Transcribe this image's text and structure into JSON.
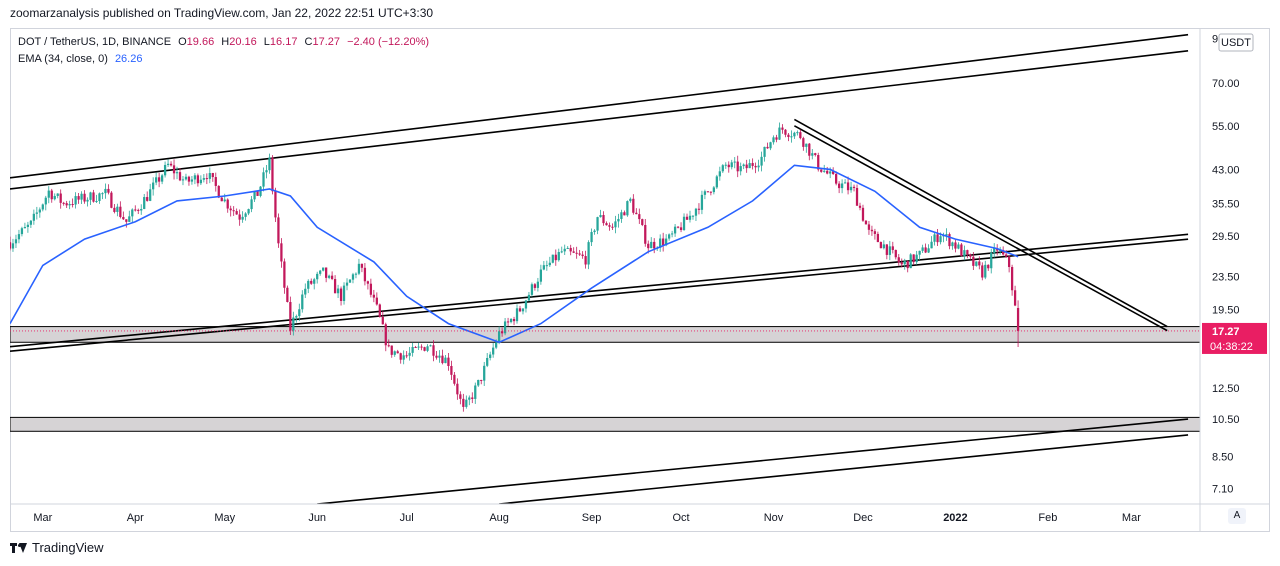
{
  "publisher_line": "zoomarzanalysis published on TradingView.com, Jan 22, 2022 22:51 UTC+3:30",
  "legend": {
    "symbol": "DOT / TetherUS, 1D, BINANCE",
    "open_label": "O",
    "open": "19.66",
    "high_label": "H",
    "high": "20.16",
    "low_label": "L",
    "low": "16.17",
    "close_label": "C",
    "close": "17.27",
    "change": "−2.40 (−12.20%)",
    "ema_label": "EMA (34, close, 0)",
    "ema_value": "26.26"
  },
  "footer_brand": "TradingView",
  "auto_button": "A",
  "colors": {
    "up": "#26a69a",
    "down": "#c2185b",
    "ema": "#2962ff",
    "trendline": "#000000",
    "zone_fill": "#d6d3d5",
    "price_tag": "#e91e63"
  },
  "chart_data": {
    "type": "candlestick",
    "currency_label": "USDT",
    "scale": "log",
    "y_tick_labels": [
      "90.00",
      "70.00",
      "55.00",
      "43.00",
      "35.50",
      "29.50",
      "23.50",
      "19.50",
      "12.50",
      "10.50",
      "8.50",
      "7.10"
    ],
    "y_tick_values": [
      90,
      70,
      55,
      43,
      35.5,
      29.5,
      23.5,
      19.5,
      12.5,
      10.5,
      8.5,
      7.1
    ],
    "x_tick_labels": [
      "Mar",
      "Apr",
      "May",
      "Jun",
      "Jul",
      "Aug",
      "Sep",
      "Oct",
      "Nov",
      "Dec",
      "2022",
      "Feb",
      "Mar"
    ],
    "x_tick_dates": [
      "2021-03-01",
      "2021-04-01",
      "2021-05-01",
      "2021-06-01",
      "2021-07-01",
      "2021-08-01",
      "2021-09-01",
      "2021-10-01",
      "2021-11-01",
      "2021-12-01",
      "2022-01-01",
      "2022-02-01",
      "2022-03-01"
    ],
    "x_range": [
      "2021-02-18",
      "2022-03-24"
    ],
    "y_range": [
      6.5,
      95
    ],
    "last_price": "17.27",
    "countdown": "04:38:22",
    "close_path": [
      {
        "date": "2021-02-18",
        "close": 28.5
      },
      {
        "date": "2021-02-25",
        "close": 31.5
      },
      {
        "date": "2021-03-03",
        "close": 38.0
      },
      {
        "date": "2021-03-08",
        "close": 35.5
      },
      {
        "date": "2021-03-15",
        "close": 36.5
      },
      {
        "date": "2021-03-22",
        "close": 37.5
      },
      {
        "date": "2021-03-29",
        "close": 32.0
      },
      {
        "date": "2021-04-05",
        "close": 37.0
      },
      {
        "date": "2021-04-12",
        "close": 44.0
      },
      {
        "date": "2021-04-18",
        "close": 40.0
      },
      {
        "date": "2021-04-25",
        "close": 42.0
      },
      {
        "date": "2021-05-01",
        "close": 36.0
      },
      {
        "date": "2021-05-06",
        "close": 33.0
      },
      {
        "date": "2021-05-12",
        "close": 37.5
      },
      {
        "date": "2021-05-16",
        "close": 45.0
      },
      {
        "date": "2021-05-19",
        "close": 28.0
      },
      {
        "date": "2021-05-23",
        "close": 17.5
      },
      {
        "date": "2021-05-28",
        "close": 22.0
      },
      {
        "date": "2021-06-03",
        "close": 24.0
      },
      {
        "date": "2021-06-09",
        "close": 21.0
      },
      {
        "date": "2021-06-15",
        "close": 25.0
      },
      {
        "date": "2021-06-21",
        "close": 19.5
      },
      {
        "date": "2021-06-25",
        "close": 15.5
      },
      {
        "date": "2021-07-01",
        "close": 15.0
      },
      {
        "date": "2021-07-08",
        "close": 16.0
      },
      {
        "date": "2021-07-15",
        "close": 14.5
      },
      {
        "date": "2021-07-20",
        "close": 11.0
      },
      {
        "date": "2021-07-25",
        "close": 12.8
      },
      {
        "date": "2021-08-01",
        "close": 17.0
      },
      {
        "date": "2021-08-08",
        "close": 19.5
      },
      {
        "date": "2021-08-15",
        "close": 24.0
      },
      {
        "date": "2021-08-22",
        "close": 27.0
      },
      {
        "date": "2021-08-30",
        "close": 26.0
      },
      {
        "date": "2021-09-03",
        "close": 33.0
      },
      {
        "date": "2021-09-08",
        "close": 31.0
      },
      {
        "date": "2021-09-14",
        "close": 36.0
      },
      {
        "date": "2021-09-20",
        "close": 28.0
      },
      {
        "date": "2021-09-27",
        "close": 29.0
      },
      {
        "date": "2021-10-04",
        "close": 33.0
      },
      {
        "date": "2021-10-10",
        "close": 38.0
      },
      {
        "date": "2021-10-16",
        "close": 44.0
      },
      {
        "date": "2021-10-22",
        "close": 43.0
      },
      {
        "date": "2021-10-28",
        "close": 46.0
      },
      {
        "date": "2021-11-01",
        "close": 52.0
      },
      {
        "date": "2021-11-04",
        "close": 54.0
      },
      {
        "date": "2021-11-10",
        "close": 52.0
      },
      {
        "date": "2021-11-16",
        "close": 44.0
      },
      {
        "date": "2021-11-22",
        "close": 40.0
      },
      {
        "date": "2021-11-28",
        "close": 38.0
      },
      {
        "date": "2021-12-03",
        "close": 30.0
      },
      {
        "date": "2021-12-08",
        "close": 28.0
      },
      {
        "date": "2021-12-14",
        "close": 25.0
      },
      {
        "date": "2021-12-20",
        "close": 26.5
      },
      {
        "date": "2021-12-27",
        "close": 30.0
      },
      {
        "date": "2022-01-01",
        "close": 28.0
      },
      {
        "date": "2022-01-05",
        "close": 26.0
      },
      {
        "date": "2022-01-10",
        "close": 24.0
      },
      {
        "date": "2022-01-15",
        "close": 27.5
      },
      {
        "date": "2022-01-19",
        "close": 25.0
      },
      {
        "date": "2022-01-21",
        "close": 19.66
      },
      {
        "date": "2022-01-22",
        "close": 17.27
      }
    ],
    "ema_path": [
      {
        "date": "2021-02-18",
        "value": 18.0
      },
      {
        "date": "2021-03-01",
        "value": 25.0
      },
      {
        "date": "2021-03-15",
        "value": 29.0
      },
      {
        "date": "2021-04-01",
        "value": 32.0
      },
      {
        "date": "2021-04-15",
        "value": 36.0
      },
      {
        "date": "2021-05-01",
        "value": 37.0
      },
      {
        "date": "2021-05-16",
        "value": 38.5
      },
      {
        "date": "2021-05-23",
        "value": 37.0
      },
      {
        "date": "2021-06-01",
        "value": 31.0
      },
      {
        "date": "2021-06-20",
        "value": 25.5
      },
      {
        "date": "2021-07-01",
        "value": 21.0
      },
      {
        "date": "2021-07-15",
        "value": 18.0
      },
      {
        "date": "2021-08-01",
        "value": 16.2
      },
      {
        "date": "2021-08-15",
        "value": 18.0
      },
      {
        "date": "2021-09-01",
        "value": 22.0
      },
      {
        "date": "2021-09-20",
        "value": 27.0
      },
      {
        "date": "2021-10-10",
        "value": 31.0
      },
      {
        "date": "2021-10-25",
        "value": 36.0
      },
      {
        "date": "2021-11-08",
        "value": 44.0
      },
      {
        "date": "2021-11-20",
        "value": 43.0
      },
      {
        "date": "2021-12-05",
        "value": 38.0
      },
      {
        "date": "2021-12-20",
        "value": 31.0
      },
      {
        "date": "2022-01-01",
        "value": 29.0
      },
      {
        "date": "2022-01-15",
        "value": 27.5
      },
      {
        "date": "2022-01-22",
        "value": 26.26
      }
    ],
    "trendlines": [
      {
        "name": "upper-channel-top",
        "from": {
          "date": "2021-02-18",
          "price": 41.0
        },
        "to": {
          "date": "2022-03-20",
          "price": 92.0
        }
      },
      {
        "name": "upper-channel-bottom",
        "from": {
          "date": "2021-02-18",
          "price": 38.5
        },
        "to": {
          "date": "2022-03-20",
          "price": 84.0
        }
      },
      {
        "name": "mid-channel-top",
        "from": {
          "date": "2021-02-18",
          "price": 15.8
        },
        "to": {
          "date": "2022-03-20",
          "price": 29.8
        }
      },
      {
        "name": "mid-channel-bottom",
        "from": {
          "date": "2021-02-18",
          "price": 15.4
        },
        "to": {
          "date": "2022-03-20",
          "price": 29.0
        }
      },
      {
        "name": "descending-resistance-a",
        "from": {
          "date": "2021-11-08",
          "price": 57.0
        },
        "to": {
          "date": "2022-03-13",
          "price": 17.7
        }
      },
      {
        "name": "descending-resistance-b",
        "from": {
          "date": "2021-11-08",
          "price": 55.0
        },
        "to": {
          "date": "2022-03-13",
          "price": 17.3
        }
      },
      {
        "name": "lower-channel-top",
        "from": {
          "date": "2021-06-01",
          "price": 6.5
        },
        "to": {
          "date": "2022-03-20",
          "price": 10.5
        }
      },
      {
        "name": "lower-channel-bottom",
        "from": {
          "date": "2021-08-01",
          "price": 6.5
        },
        "to": {
          "date": "2022-03-20",
          "price": 9.6
        }
      }
    ],
    "zones": [
      {
        "name": "support-zone-upper",
        "low": 16.2,
        "high": 17.7
      },
      {
        "name": "support-zone-lower",
        "low": 9.8,
        "high": 10.6
      }
    ]
  }
}
